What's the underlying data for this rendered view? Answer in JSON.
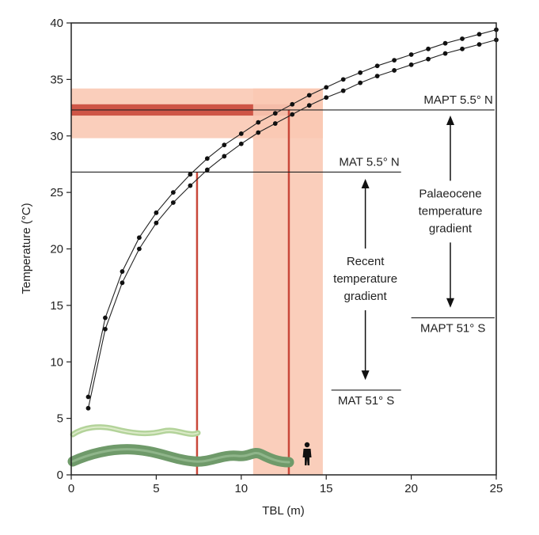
{
  "chart_data": {
    "type": "line",
    "xlabel": "TBL (m)",
    "ylabel": "Temperature (°C)",
    "xlim": [
      0,
      25
    ],
    "ylim": [
      0,
      40
    ],
    "x_ticks": [
      0,
      5,
      10,
      15,
      20,
      25
    ],
    "y_ticks": [
      0,
      5,
      10,
      15,
      20,
      25,
      30,
      35,
      40
    ],
    "grid": false,
    "series": [
      {
        "x": [
          1,
          2,
          3,
          4,
          5,
          6,
          7,
          8,
          9,
          10,
          11,
          12,
          13,
          14,
          15,
          16,
          17,
          18,
          19,
          20,
          21,
          22,
          23,
          24,
          25
        ],
        "y": [
          6.9,
          13.9,
          18.0,
          21.0,
          23.2,
          25.0,
          26.6,
          28.0,
          29.2,
          30.2,
          31.2,
          32.0,
          32.8,
          33.6,
          34.3,
          35.0,
          35.6,
          36.2,
          36.7,
          37.2,
          37.7,
          38.2,
          38.6,
          39.0,
          39.4
        ]
      },
      {
        "x": [
          1,
          2,
          3,
          4,
          5,
          6,
          7,
          8,
          9,
          10,
          11,
          12,
          13,
          14,
          15,
          16,
          17,
          18,
          19,
          20,
          21,
          22,
          23,
          24,
          25
        ],
        "y": [
          5.9,
          12.9,
          17.0,
          20.0,
          22.3,
          24.1,
          25.6,
          27.0,
          28.2,
          29.3,
          30.3,
          31.1,
          31.9,
          32.7,
          33.4,
          34.0,
          34.7,
          35.3,
          35.8,
          36.3,
          36.8,
          37.3,
          37.7,
          38.1,
          38.5
        ]
      }
    ],
    "reference_lines": [
      {
        "label": "MAPT 5.5° N",
        "y": 32.3,
        "x_range": [
          0,
          24.9
        ]
      },
      {
        "label": "MAT 5.5° N",
        "y": 26.8,
        "x_range": [
          0,
          19.4
        ]
      },
      {
        "label": "MAPT 51° S",
        "y": 13.9,
        "x_range": [
          20.0,
          24.9
        ]
      },
      {
        "label": "MAT 51° S",
        "y": 7.5,
        "x_range": [
          15.3,
          19.4
        ]
      }
    ],
    "bands": [
      {
        "axis": "y",
        "range": [
          29.8,
          34.2
        ],
        "x_range": [
          0,
          14.8
        ],
        "color": "#f9c9b4"
      },
      {
        "axis": "y",
        "range": [
          31.8,
          32.8
        ],
        "x_range": [
          0,
          12.9
        ],
        "color": "#c9483a"
      },
      {
        "axis": "x",
        "range": [
          10.7,
          14.8
        ],
        "y_range": [
          0,
          34.2
        ],
        "color": "#f9c9b4"
      }
    ],
    "vertical_markers": [
      {
        "x": 7.4,
        "y_top": 26.8,
        "color": "#c9483a"
      },
      {
        "x": 12.8,
        "y_top": 32.3,
        "color": "#c9483a"
      }
    ],
    "annotations": [
      {
        "lines": [
          "Palaeocene",
          "temperature",
          "gradient"
        ],
        "arrow_x": 22.3,
        "arrow_range": [
          14.8,
          31.8
        ]
      },
      {
        "lines": [
          "Recent",
          "temperature",
          "gradient"
        ],
        "arrow_x": 17.3,
        "arrow_range": [
          8.4,
          26.2
        ]
      }
    ],
    "colors": {
      "band_light": "#f9c9b4",
      "band_dark": "#c9483a",
      "snake_light": "#b3d39a",
      "snake_dark": "#6f9a6a"
    },
    "icons": [
      "snake-light-icon",
      "snake-dark-icon",
      "human-silhouette-icon"
    ]
  }
}
